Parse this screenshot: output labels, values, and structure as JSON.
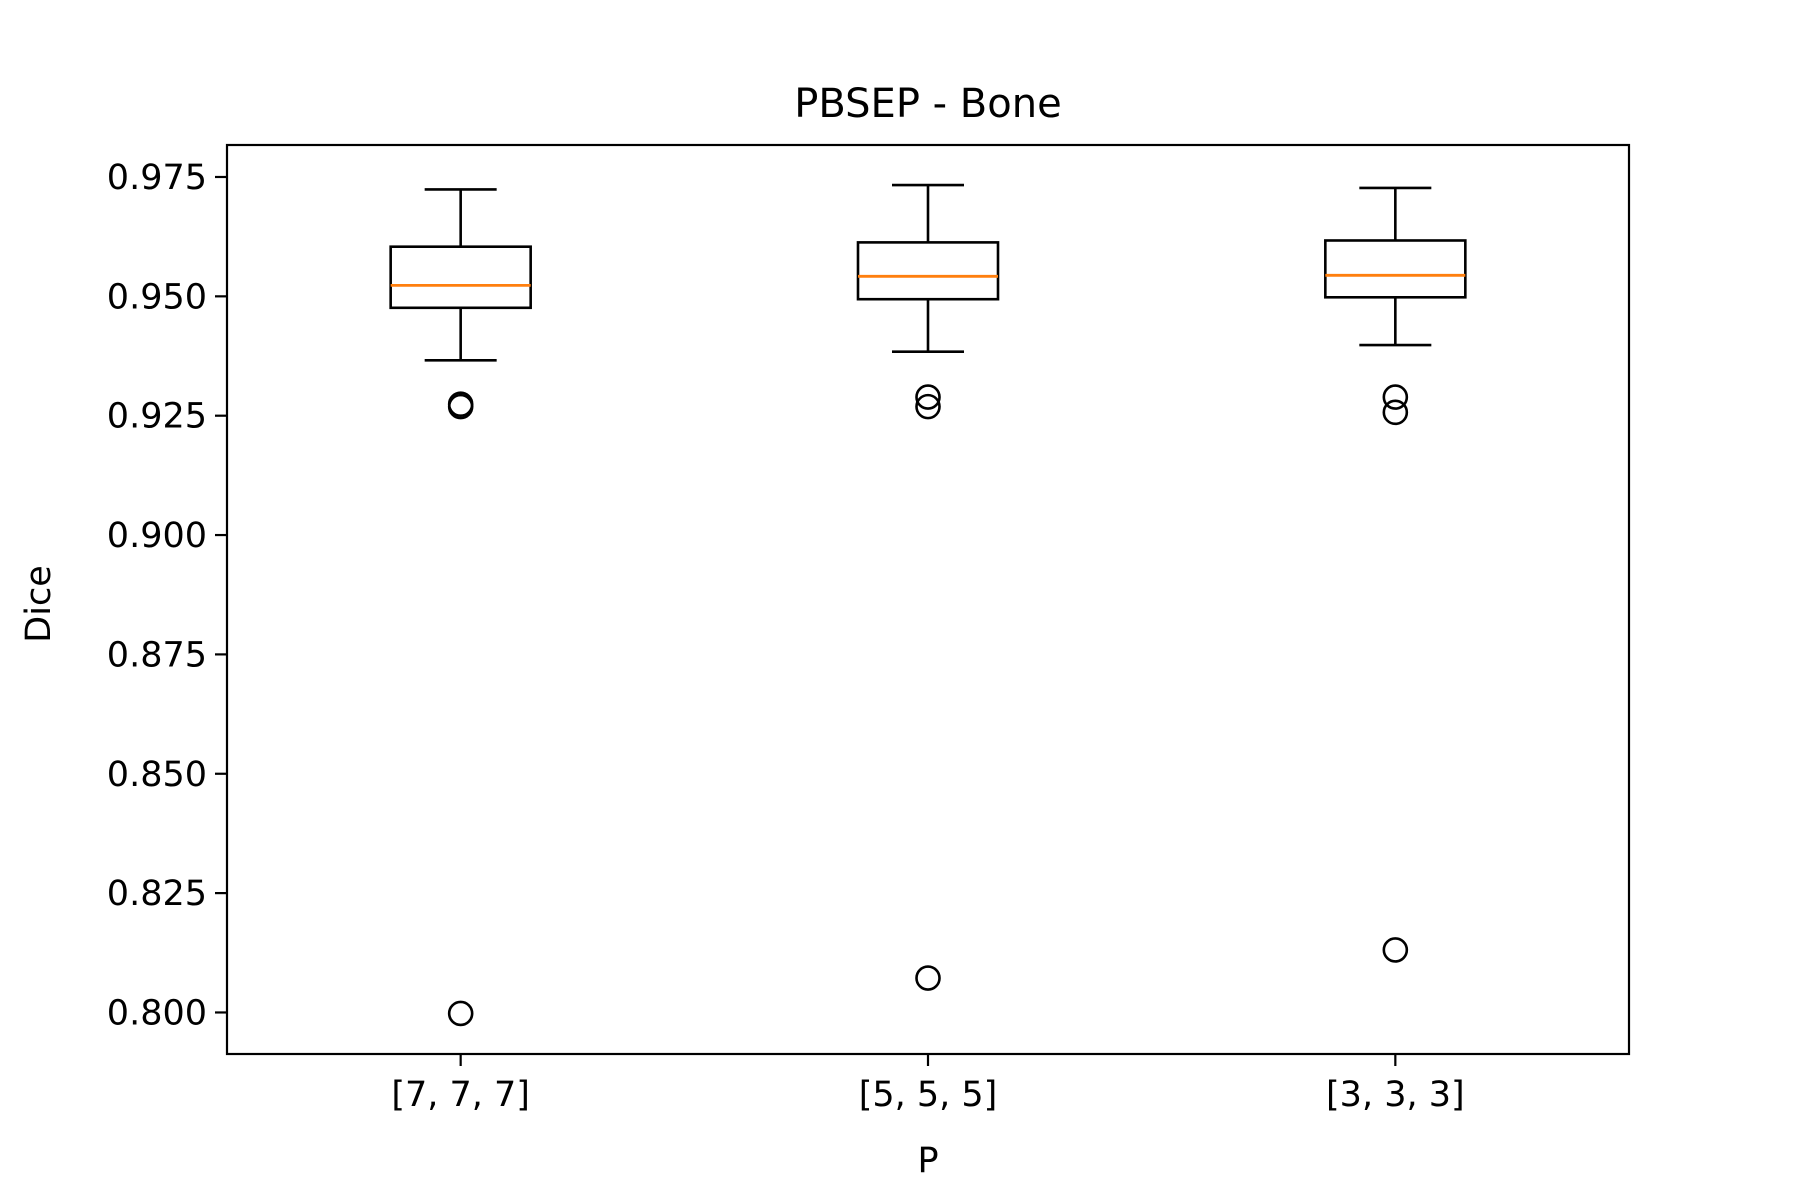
{
  "chart_data": {
    "type": "box",
    "title": "PBSEP - Bone",
    "xlabel": "P",
    "ylabel": "Dice",
    "categories": [
      "[7, 7, 7]",
      "[5, 5, 5]",
      "[3, 3, 3]"
    ],
    "ylim": [
      0.7913,
      0.9817
    ],
    "yticks": [
      0.8,
      0.825,
      0.85,
      0.875,
      0.9,
      0.925,
      0.95,
      0.975
    ],
    "ytick_labels": [
      "0.800",
      "0.825",
      "0.850",
      "0.875",
      "0.900",
      "0.925",
      "0.950",
      "0.975"
    ],
    "grid": false,
    "boxes": [
      {
        "category": "[7, 7, 7]",
        "whisker_low": 0.9366,
        "q1": 0.9476,
        "median": 0.9523,
        "q3": 0.9604,
        "whisker_high": 0.9724,
        "outliers": [
          0.9274,
          0.9269,
          0.7998
        ]
      },
      {
        "category": "[5, 5, 5]",
        "whisker_low": 0.9384,
        "q1": 0.9494,
        "median": 0.9542,
        "q3": 0.9613,
        "whisker_high": 0.9733,
        "outliers": [
          0.9289,
          0.9269,
          0.8072
        ]
      },
      {
        "category": "[3, 3, 3]",
        "whisker_low": 0.9398,
        "q1": 0.9498,
        "median": 0.9544,
        "q3": 0.9617,
        "whisker_high": 0.9727,
        "outliers": [
          0.9289,
          0.9257,
          0.8131
        ]
      }
    ],
    "colors": {
      "box": "#000000",
      "median": "#ff7f0e",
      "outlier": "#000000"
    }
  }
}
